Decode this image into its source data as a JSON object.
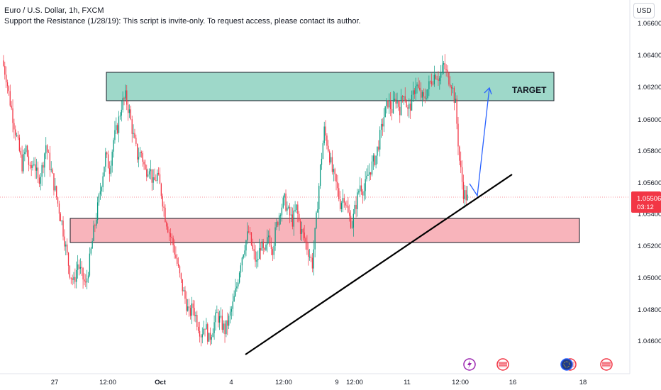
{
  "header": {
    "symbol": "Euro / U.S. Dollar, 1h, FXCM",
    "script_note": "Support the Resistance (1/28/19): This script is invite-only. To request access, please contact its author."
  },
  "currency_button": "USD",
  "price_badge": {
    "price": "1.05506",
    "countdown": "03:12",
    "color": "#f23645"
  },
  "colors": {
    "up": "#089981",
    "down": "#f23645",
    "resistance_zone": "#9ed8c9",
    "support_zone": "#f8b4bb",
    "arrow": "#2962ff"
  },
  "chart_data": {
    "type": "candlestick",
    "title": "Euro / U.S. Dollar, 1h, FXCM",
    "y_axis": {
      "ticks": [
        "1.06600",
        "1.06400",
        "1.06200",
        "1.06000",
        "1.05800",
        "1.05600",
        "1.05400",
        "1.05200",
        "1.05000",
        "1.04800",
        "1.04600"
      ],
      "range": [
        1.044,
        1.067
      ],
      "position": "right"
    },
    "x_axis": {
      "ticks": [
        "27",
        "12:00",
        "Oct",
        "4",
        "12:00",
        "9",
        "12:00",
        "11",
        "12:00",
        "16",
        "18"
      ]
    },
    "zones": [
      {
        "name": "resistance",
        "label": "TARGET",
        "price_low": 1.0611,
        "price_high": 1.063,
        "color": "#9ed8c9"
      },
      {
        "name": "support",
        "label": "",
        "price_low": 1.0522,
        "price_high": 1.0537,
        "color": "#f8b4bb"
      }
    ],
    "trendline": {
      "from_price": 1.0461,
      "to_price": 1.0565
    },
    "projection": {
      "from_price": 1.055,
      "via_price": 1.0567,
      "to_price": 1.0618
    },
    "last_price": 1.05506,
    "close_path": [
      1.0638,
      1.0628,
      1.0612,
      1.0598,
      1.0585,
      1.0572,
      1.0583,
      1.0568,
      1.0575,
      1.0562,
      1.057,
      1.0585,
      1.0572,
      1.056,
      1.0548,
      1.0536,
      1.052,
      1.0505,
      1.0498,
      1.051,
      1.0503,
      1.0496,
      1.0512,
      1.053,
      1.0545,
      1.0562,
      1.0578,
      1.057,
      1.0588,
      1.0596,
      1.061,
      1.0615,
      1.0605,
      1.059,
      1.0578,
      1.058,
      1.0568,
      1.0572,
      1.056,
      1.0566,
      1.0555,
      1.054,
      1.053,
      1.0522,
      1.051,
      1.0498,
      1.0488,
      1.0478,
      1.0483,
      1.0474,
      1.0466,
      1.0472,
      1.0462,
      1.047,
      1.0478,
      1.0473,
      1.0468,
      1.0475,
      1.0484,
      1.0496,
      1.0512,
      1.0522,
      1.053,
      1.0518,
      1.051,
      1.0522,
      1.0515,
      1.0528,
      1.052,
      1.0534,
      1.0545,
      1.055,
      1.0542,
      1.0537,
      1.0545,
      1.0532,
      1.0526,
      1.0518,
      1.051,
      1.0538,
      1.057,
      1.0594,
      1.0583,
      1.0568,
      1.056,
      1.0548,
      1.0553,
      1.0541,
      1.0535,
      1.0548,
      1.056,
      1.0556,
      1.0566,
      1.0572,
      1.0578,
      1.059,
      1.0603,
      1.0612,
      1.0607,
      1.0614,
      1.0608,
      1.0619,
      1.0606,
      1.0612,
      1.0624,
      1.0617,
      1.0613,
      1.062,
      1.0626,
      1.063,
      1.0627,
      1.0635,
      1.0628,
      1.0624,
      1.061,
      1.0575,
      1.0555,
      1.0551
    ]
  }
}
